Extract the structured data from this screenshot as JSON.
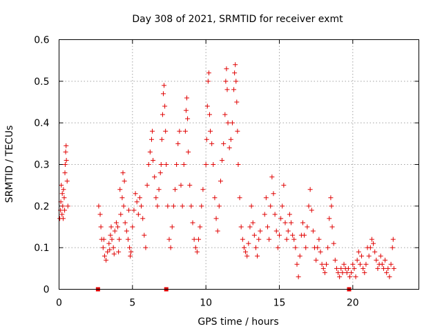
{
  "chart_data": {
    "type": "scatter",
    "title": "Day 308 of 2021, SRMTID for receiver exmt",
    "xlabel": "GPS time / hours",
    "ylabel": "SRMTID / TECUs",
    "xlim": [
      0,
      24.5
    ],
    "ylim": [
      0,
      0.6
    ],
    "x_ticks": [
      0,
      5,
      10,
      15,
      20
    ],
    "x_tick_labels": [
      "0",
      "5",
      "10",
      "15",
      "20"
    ],
    "y_ticks": [
      0,
      0.1,
      0.2,
      0.3,
      0.4,
      0.5,
      0.6
    ],
    "y_tick_labels": [
      "0",
      "0.1",
      "0.2",
      "0.3",
      "0.4",
      "0.5",
      "0.6"
    ],
    "grid": true,
    "marker": "plus",
    "color": "#e00000",
    "series": [
      {
        "name": "SRMTID",
        "points": [
          [
            0.05,
            0.17
          ],
          [
            0.1,
            0.19
          ],
          [
            0.12,
            0.21
          ],
          [
            0.15,
            0.25
          ],
          [
            0.2,
            0.18
          ],
          [
            0.25,
            0.2
          ],
          [
            0.3,
            0.24
          ],
          [
            0.35,
            0.22
          ],
          [
            0.4,
            0.28
          ],
          [
            0.42,
            0.3
          ],
          [
            0.45,
            0.33
          ],
          [
            0.48,
            0.345
          ],
          [
            0.5,
            0.31
          ],
          [
            0.55,
            0.26
          ],
          [
            0.6,
            0.2
          ],
          [
            0.38,
            0.19
          ],
          [
            0.22,
            0.23
          ],
          [
            0.28,
            0.17
          ],
          [
            2.7,
            0.2
          ],
          [
            2.8,
            0.18
          ],
          [
            2.85,
            0.15
          ],
          [
            2.9,
            0.12
          ],
          [
            3.0,
            0.1
          ],
          [
            3.1,
            0.08
          ],
          [
            3.2,
            0.07
          ],
          [
            3.3,
            0.09
          ],
          [
            3.4,
            0.11
          ],
          [
            3.5,
            0.13
          ],
          [
            3.6,
            0.12
          ],
          [
            3.7,
            0.1
          ],
          [
            3.8,
            0.14
          ],
          [
            3.9,
            0.16
          ],
          [
            4.0,
            0.15
          ],
          [
            4.1,
            0.12
          ],
          [
            4.2,
            0.18
          ],
          [
            4.3,
            0.22
          ],
          [
            4.4,
            0.2
          ],
          [
            4.5,
            0.16
          ],
          [
            4.6,
            0.14
          ],
          [
            4.7,
            0.12
          ],
          [
            4.8,
            0.1
          ],
          [
            4.9,
            0.09
          ],
          [
            5.0,
            0.15
          ],
          [
            5.1,
            0.19
          ],
          [
            5.2,
            0.23
          ],
          [
            5.3,
            0.21
          ],
          [
            5.4,
            0.18
          ],
          [
            5.5,
            0.22
          ],
          [
            5.6,
            0.2
          ],
          [
            5.7,
            0.17
          ],
          [
            5.8,
            0.13
          ],
          [
            5.9,
            0.1
          ],
          [
            3.05,
            0.12
          ],
          [
            3.45,
            0.095
          ],
          [
            3.75,
            0.085
          ],
          [
            4.05,
            0.09
          ],
          [
            4.35,
            0.28
          ],
          [
            4.45,
            0.26
          ],
          [
            4.15,
            0.24
          ],
          [
            3.55,
            0.15
          ],
          [
            4.75,
            0.19
          ],
          [
            4.85,
            0.08
          ],
          [
            6.0,
            0.25
          ],
          [
            6.1,
            0.3
          ],
          [
            6.2,
            0.33
          ],
          [
            6.3,
            0.36
          ],
          [
            6.35,
            0.38
          ],
          [
            6.4,
            0.31
          ],
          [
            6.5,
            0.27
          ],
          [
            6.6,
            0.22
          ],
          [
            6.7,
            0.2
          ],
          [
            6.8,
            0.24
          ],
          [
            6.9,
            0.28
          ],
          [
            6.95,
            0.3
          ],
          [
            7.0,
            0.36
          ],
          [
            7.05,
            0.42
          ],
          [
            7.1,
            0.47
          ],
          [
            7.15,
            0.49
          ],
          [
            7.2,
            0.44
          ],
          [
            7.25,
            0.38
          ],
          [
            7.3,
            0.3
          ],
          [
            7.4,
            0.2
          ],
          [
            7.5,
            0.12
          ],
          [
            7.6,
            0.1
          ],
          [
            7.7,
            0.15
          ],
          [
            7.8,
            0.2
          ],
          [
            7.9,
            0.24
          ],
          [
            8.0,
            0.3
          ],
          [
            8.1,
            0.35
          ],
          [
            8.2,
            0.38
          ],
          [
            8.3,
            0.25
          ],
          [
            8.4,
            0.2
          ],
          [
            8.5,
            0.3
          ],
          [
            8.6,
            0.38
          ],
          [
            8.65,
            0.43
          ],
          [
            8.7,
            0.46
          ],
          [
            8.75,
            0.41
          ],
          [
            8.8,
            0.33
          ],
          [
            8.9,
            0.25
          ],
          [
            9.0,
            0.2
          ],
          [
            9.1,
            0.16
          ],
          [
            9.2,
            0.12
          ],
          [
            9.3,
            0.1
          ],
          [
            9.4,
            0.09
          ],
          [
            9.5,
            0.12
          ],
          [
            9.6,
            0.15
          ],
          [
            9.7,
            0.2
          ],
          [
            9.8,
            0.24
          ],
          [
            10.0,
            0.3
          ],
          [
            10.05,
            0.36
          ],
          [
            10.1,
            0.44
          ],
          [
            10.15,
            0.5
          ],
          [
            10.2,
            0.52
          ],
          [
            10.25,
            0.42
          ],
          [
            10.3,
            0.38
          ],
          [
            10.4,
            0.35
          ],
          [
            10.5,
            0.3
          ],
          [
            10.6,
            0.22
          ],
          [
            10.7,
            0.17
          ],
          [
            10.8,
            0.14
          ],
          [
            10.9,
            0.2
          ],
          [
            11.0,
            0.26
          ],
          [
            11.1,
            0.31
          ],
          [
            11.2,
            0.35
          ],
          [
            11.3,
            0.42
          ],
          [
            11.35,
            0.5
          ],
          [
            11.4,
            0.53
          ],
          [
            11.45,
            0.48
          ],
          [
            11.5,
            0.4
          ],
          [
            11.6,
            0.34
          ],
          [
            11.7,
            0.36
          ],
          [
            11.8,
            0.4
          ],
          [
            11.9,
            0.48
          ],
          [
            11.95,
            0.52
          ],
          [
            12.0,
            0.54
          ],
          [
            12.05,
            0.5
          ],
          [
            12.1,
            0.45
          ],
          [
            12.15,
            0.38
          ],
          [
            12.2,
            0.3
          ],
          [
            12.3,
            0.22
          ],
          [
            12.4,
            0.15
          ],
          [
            12.5,
            0.12
          ],
          [
            12.6,
            0.1
          ],
          [
            12.7,
            0.09
          ],
          [
            12.8,
            0.08
          ],
          [
            12.9,
            0.11
          ],
          [
            13.0,
            0.15
          ],
          [
            13.1,
            0.2
          ],
          [
            13.2,
            0.16
          ],
          [
            13.3,
            0.13
          ],
          [
            13.4,
            0.1
          ],
          [
            13.5,
            0.08
          ],
          [
            13.6,
            0.12
          ],
          [
            13.7,
            0.14
          ],
          [
            14.0,
            0.18
          ],
          [
            14.1,
            0.22
          ],
          [
            14.2,
            0.15
          ],
          [
            14.3,
            0.12
          ],
          [
            14.4,
            0.2
          ],
          [
            14.5,
            0.27
          ],
          [
            14.6,
            0.23
          ],
          [
            14.7,
            0.18
          ],
          [
            14.8,
            0.14
          ],
          [
            14.9,
            0.1
          ],
          [
            15.0,
            0.13
          ],
          [
            15.1,
            0.17
          ],
          [
            15.2,
            0.2
          ],
          [
            15.3,
            0.25
          ],
          [
            15.4,
            0.16
          ],
          [
            15.5,
            0.12
          ],
          [
            15.6,
            0.14
          ],
          [
            15.7,
            0.18
          ],
          [
            15.8,
            0.16
          ],
          [
            15.9,
            0.13
          ],
          [
            16.0,
            0.12
          ],
          [
            16.1,
            0.1
          ],
          [
            16.2,
            0.06
          ],
          [
            16.3,
            0.03
          ],
          [
            16.4,
            0.08
          ],
          [
            16.5,
            0.13
          ],
          [
            16.6,
            0.16
          ],
          [
            16.7,
            0.13
          ],
          [
            16.8,
            0.1
          ],
          [
            16.9,
            0.15
          ],
          [
            17.0,
            0.2
          ],
          [
            17.1,
            0.24
          ],
          [
            17.2,
            0.19
          ],
          [
            17.3,
            0.14
          ],
          [
            17.4,
            0.1
          ],
          [
            17.5,
            0.07
          ],
          [
            17.6,
            0.1
          ],
          [
            17.7,
            0.12
          ],
          [
            17.8,
            0.09
          ],
          [
            17.9,
            0.06
          ],
          [
            18.0,
            0.05
          ],
          [
            18.1,
            0.04
          ],
          [
            18.2,
            0.06
          ],
          [
            18.3,
            0.1
          ],
          [
            18.4,
            0.17
          ],
          [
            18.5,
            0.22
          ],
          [
            18.55,
            0.2
          ],
          [
            18.6,
            0.15
          ],
          [
            18.7,
            0.11
          ],
          [
            18.8,
            0.07
          ],
          [
            18.9,
            0.05
          ],
          [
            19.0,
            0.04
          ],
          [
            19.1,
            0.03
          ],
          [
            19.2,
            0.05
          ],
          [
            19.3,
            0.04
          ],
          [
            19.4,
            0.06
          ],
          [
            19.5,
            0.05
          ],
          [
            19.6,
            0.04
          ],
          [
            19.7,
            0.05
          ],
          [
            19.8,
            0.03
          ],
          [
            19.9,
            0.04
          ],
          [
            20.0,
            0.06
          ],
          [
            20.1,
            0.05
          ],
          [
            20.2,
            0.03
          ],
          [
            20.3,
            0.07
          ],
          [
            20.4,
            0.09
          ],
          [
            20.5,
            0.06
          ],
          [
            20.6,
            0.08
          ],
          [
            20.7,
            0.05
          ],
          [
            20.8,
            0.04
          ],
          [
            20.9,
            0.06
          ],
          [
            21.0,
            0.1
          ],
          [
            21.1,
            0.08
          ],
          [
            21.2,
            0.1
          ],
          [
            21.3,
            0.12
          ],
          [
            21.4,
            0.11
          ],
          [
            21.5,
            0.09
          ],
          [
            21.6,
            0.07
          ],
          [
            21.7,
            0.05
          ],
          [
            21.8,
            0.06
          ],
          [
            21.9,
            0.08
          ],
          [
            22.0,
            0.06
          ],
          [
            22.1,
            0.05
          ],
          [
            22.2,
            0.07
          ],
          [
            22.3,
            0.04
          ],
          [
            22.4,
            0.05
          ],
          [
            22.5,
            0.03
          ],
          [
            22.6,
            0.06
          ],
          [
            22.7,
            0.1
          ],
          [
            22.75,
            0.12
          ],
          [
            22.8,
            0.05
          ]
        ]
      }
    ],
    "gap_markers_x": [
      2.65,
      7.3,
      19.75
    ]
  }
}
